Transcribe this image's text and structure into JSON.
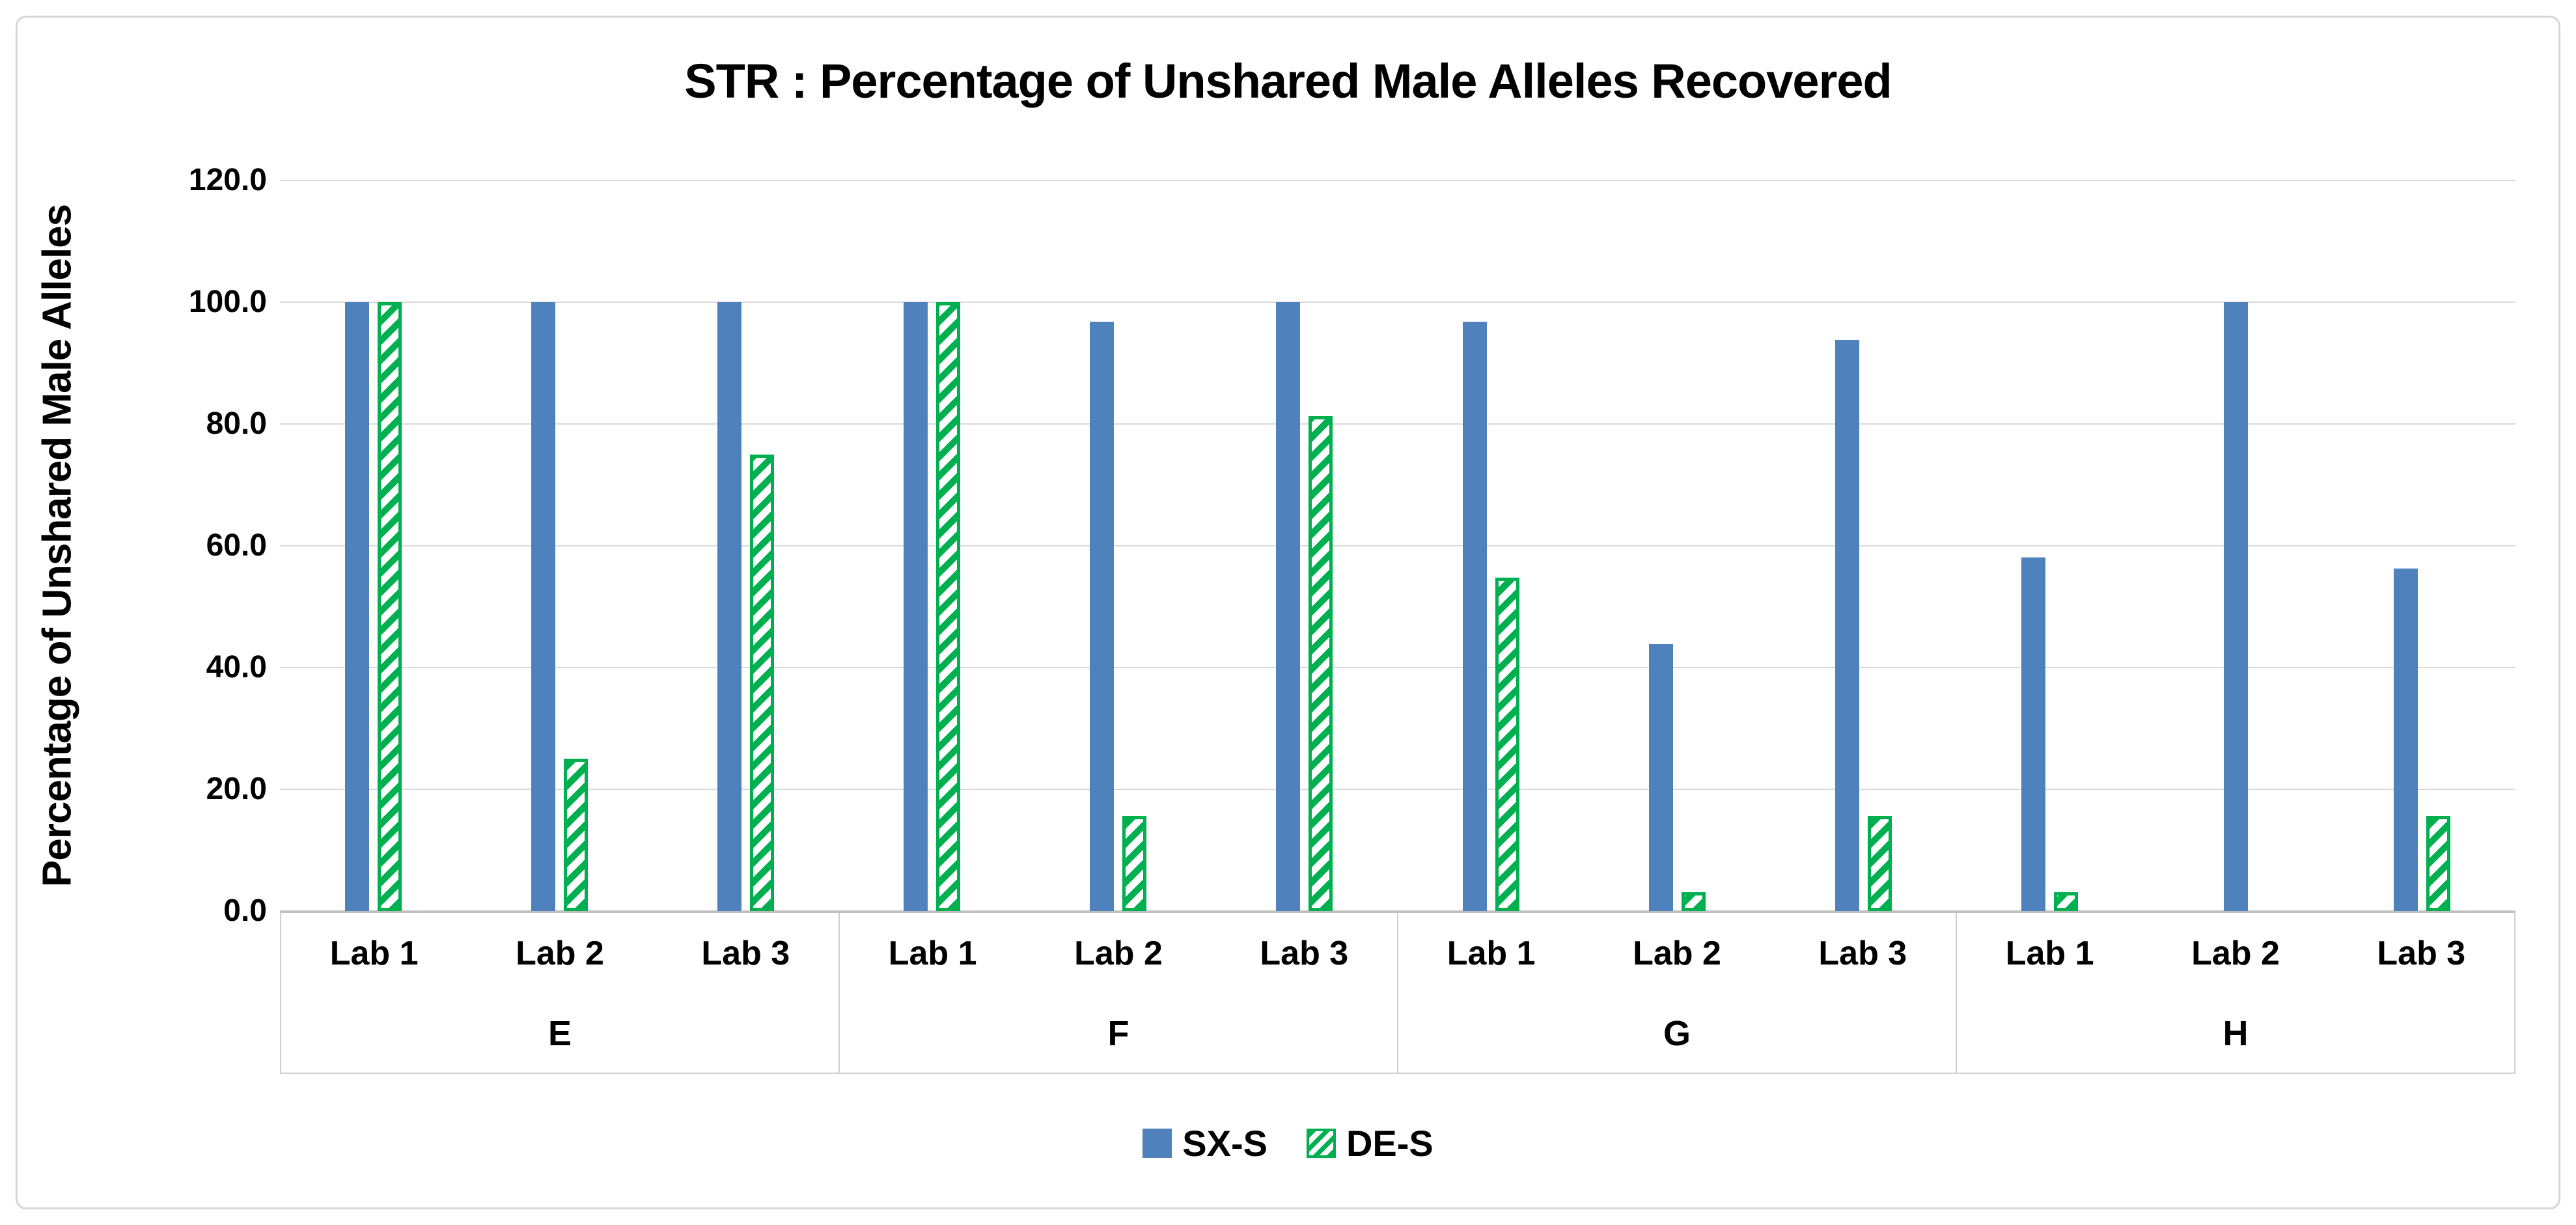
{
  "title": "STR : Percentage of Unshared Male Alleles Recovered",
  "y_axis": {
    "label": "Percentage of Unshared Male Alleles",
    "tick_labels": [
      "120.0",
      "100.0",
      "80.0",
      "60.0",
      "40.0",
      "20.0",
      "0.0"
    ]
  },
  "legend": {
    "items": [
      {
        "label": "SX-S",
        "color": "#4f81bd",
        "pattern": "solid"
      },
      {
        "label": "DE-S",
        "color": "#00b050",
        "pattern": "diagonal-hatch"
      }
    ],
    "position": "bottom"
  },
  "chart_data": {
    "type": "bar",
    "title": "STR : Percentage of Unshared Male Alleles Recovered",
    "xlabel": "",
    "ylabel": "Percentage of Unshared Male Alleles",
    "ylim": [
      0,
      120
    ],
    "ytick_interval": 20,
    "ytick_labels": [
      "0.0",
      "20.0",
      "40.0",
      "60.0",
      "80.0",
      "100.0",
      "120.0"
    ],
    "grid": true,
    "legend_position": "bottom",
    "group_labels": [
      "E",
      "F",
      "G",
      "H"
    ],
    "categories": [
      "Lab 1",
      "Lab 2",
      "Lab 3",
      "Lab 1",
      "Lab 2",
      "Lab 3",
      "Lab 1",
      "Lab 2",
      "Lab 3",
      "Lab 1",
      "Lab 2",
      "Lab 3"
    ],
    "category_groups": [
      "E",
      "E",
      "E",
      "F",
      "F",
      "F",
      "G",
      "G",
      "G",
      "H",
      "H",
      "H"
    ],
    "series": [
      {
        "name": "SX-S",
        "color": "#4f81bd",
        "pattern": "solid",
        "values": [
          100,
          100,
          100,
          100,
          96.8,
          100,
          96.8,
          43.8,
          93.8,
          58.1,
          100,
          56.3
        ]
      },
      {
        "name": "DE-S",
        "color": "#00b050",
        "pattern": "diagonal-hatch",
        "values": [
          100,
          25.0,
          75.0,
          100,
          15.6,
          81.3,
          54.8,
          3.1,
          15.6,
          3.1,
          0,
          15.6
        ]
      }
    ]
  }
}
